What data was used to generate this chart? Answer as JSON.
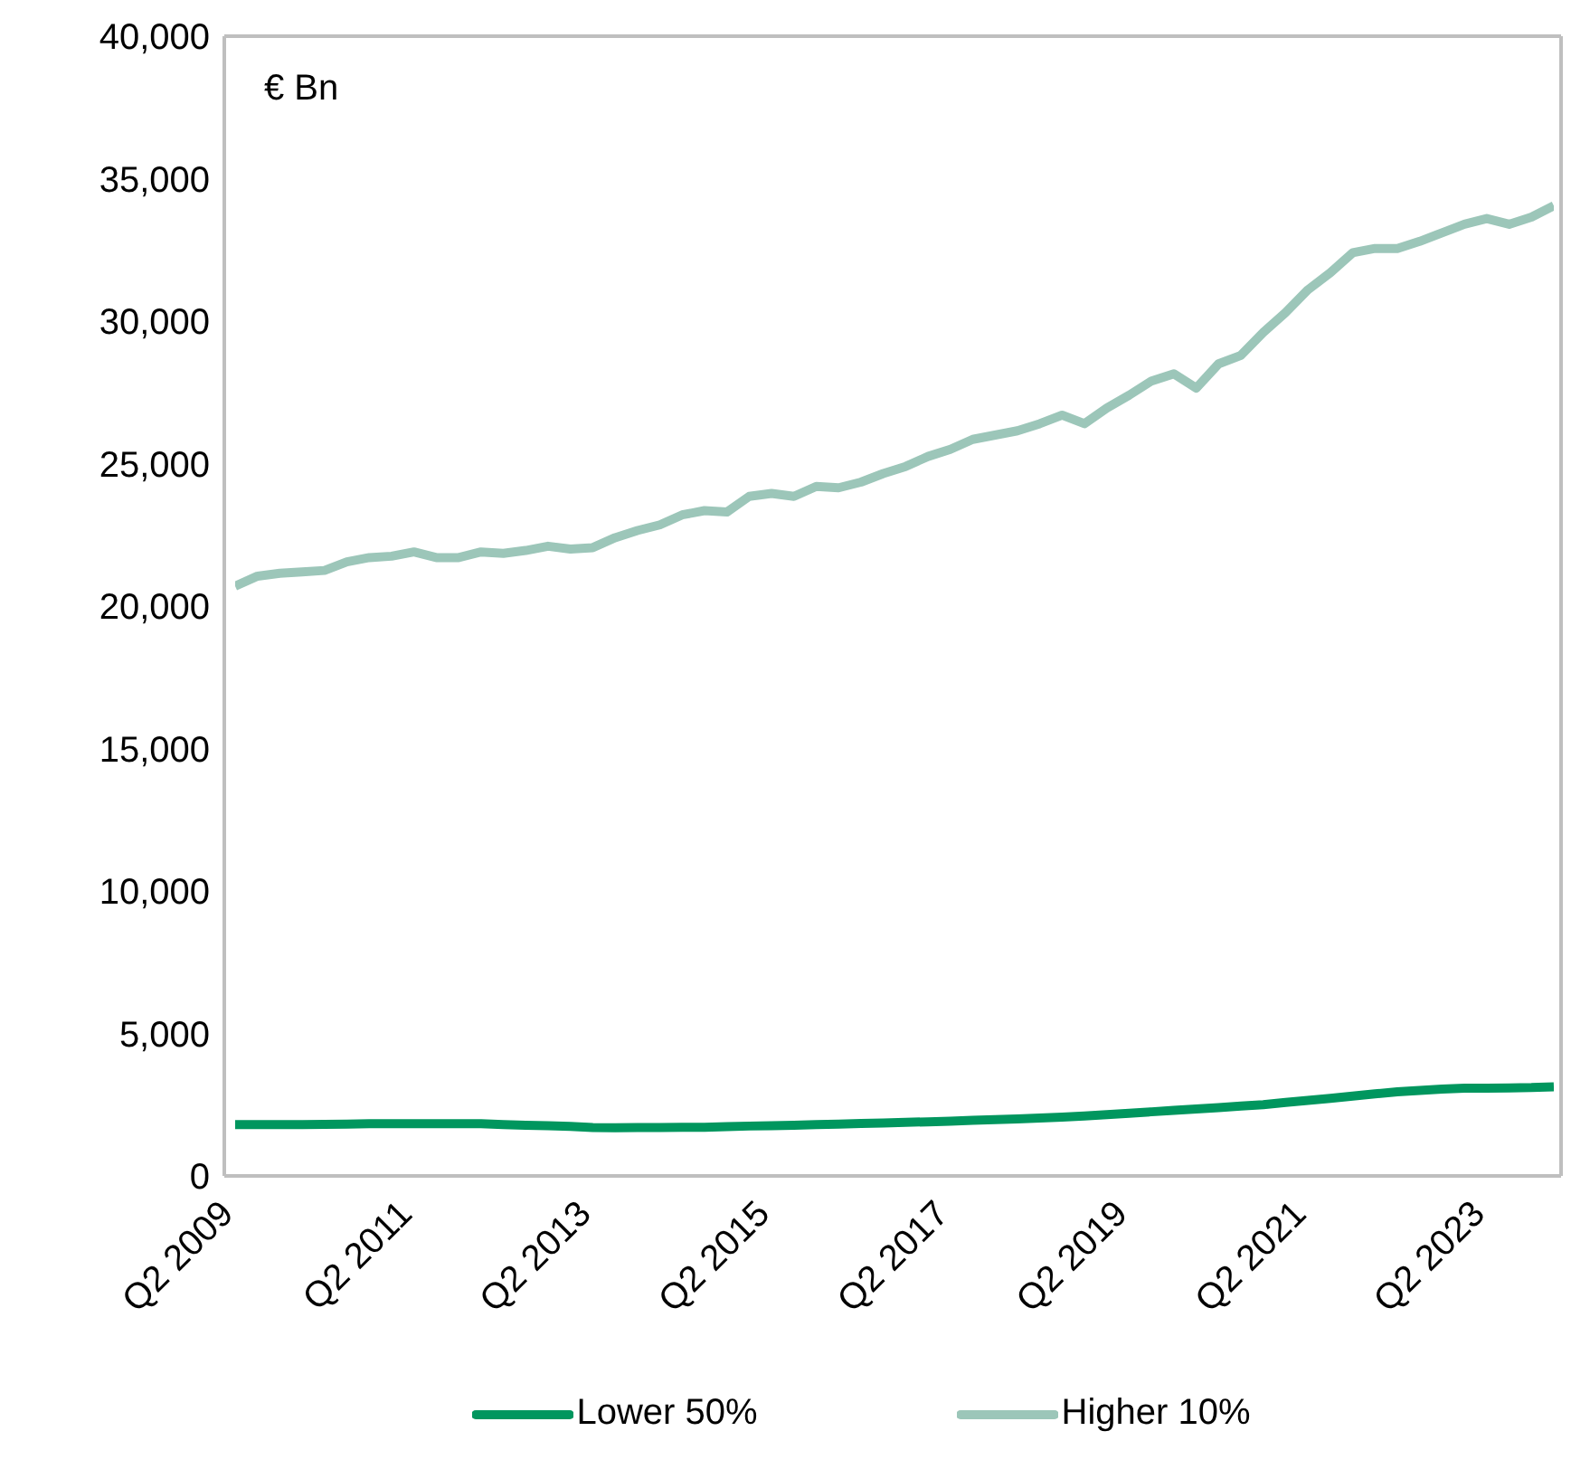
{
  "chart_data": {
    "type": "line",
    "annotations": [
      "€ Bn"
    ],
    "categories": [
      "Q2 2009",
      null,
      null,
      null,
      null,
      null,
      null,
      null,
      "Q2 2011",
      null,
      null,
      null,
      null,
      null,
      null,
      null,
      "Q2 2013",
      null,
      null,
      null,
      null,
      null,
      null,
      null,
      "Q2 2015",
      null,
      null,
      null,
      null,
      null,
      null,
      null,
      "Q2 2017",
      null,
      null,
      null,
      null,
      null,
      null,
      null,
      "Q2 2019",
      null,
      null,
      null,
      null,
      null,
      null,
      null,
      "Q2 2021",
      null,
      null,
      null,
      null,
      null,
      null,
      null,
      "Q2 2023",
      null,
      null,
      null
    ],
    "series": [
      {
        "name": "Lower 50%",
        "color": "#00965e",
        "values": [
          1800,
          1800,
          1800,
          1800,
          1810,
          1820,
          1830,
          1830,
          1830,
          1830,
          1830,
          1830,
          1800,
          1780,
          1760,
          1740,
          1700,
          1690,
          1700,
          1700,
          1710,
          1710,
          1730,
          1750,
          1760,
          1780,
          1800,
          1820,
          1840,
          1860,
          1880,
          1900,
          1920,
          1950,
          1980,
          2000,
          2030,
          2060,
          2100,
          2150,
          2200,
          2250,
          2300,
          2350,
          2400,
          2450,
          2500,
          2580,
          2650,
          2720,
          2800,
          2880,
          2950,
          3000,
          3050,
          3080,
          3080,
          3090,
          3100,
          3130
        ]
      },
      {
        "name": "Higher 10%",
        "color": "#9cc6b9",
        "values": [
          20700,
          21050,
          21150,
          21200,
          21250,
          21550,
          21700,
          21750,
          21900,
          21700,
          21700,
          21900,
          21850,
          21950,
          22100,
          22000,
          22050,
          22400,
          22650,
          22850,
          23200,
          23350,
          23300,
          23850,
          23950,
          23850,
          24200,
          24150,
          24350,
          24650,
          24900,
          25250,
          25500,
          25850,
          26000,
          26150,
          26400,
          26700,
          26400,
          26950,
          27400,
          27900,
          28150,
          27650,
          28500,
          28800,
          29600,
          30300,
          31100,
          31700,
          32400,
          32550,
          32550,
          32800,
          33100,
          33400,
          33600,
          33400,
          33650,
          34050
        ]
      }
    ],
    "ylim": [
      0,
      40000
    ],
    "yticks": [
      {
        "value": 0,
        "label": "0"
      },
      {
        "value": 5000,
        "label": "5,000"
      },
      {
        "value": 10000,
        "label": "10,000"
      },
      {
        "value": 15000,
        "label": "15,000"
      },
      {
        "value": 20000,
        "label": "20,000"
      },
      {
        "value": 25000,
        "label": "25,000"
      },
      {
        "value": 30000,
        "label": "30,000"
      },
      {
        "value": 35000,
        "label": "35,000"
      },
      {
        "value": 40000,
        "label": "40,000"
      }
    ],
    "grid": false,
    "legend": "bottom",
    "marker": "none",
    "line_style": "solid"
  }
}
